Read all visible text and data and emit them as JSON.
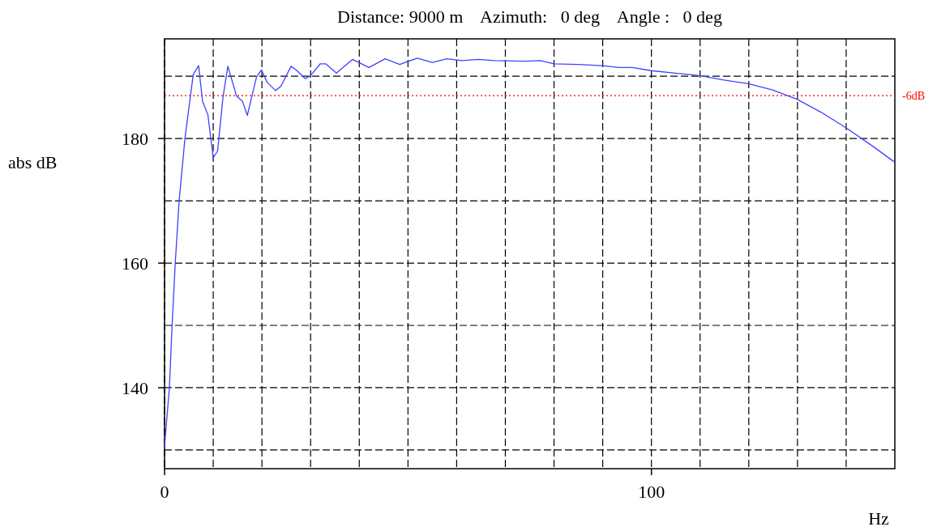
{
  "chart_data": {
    "type": "line",
    "title": "Distance: 9000 m    Azimuth:   0 deg    Angle :   0 deg",
    "xlabel": "Hz",
    "ylabel": "abs dB",
    "xlim": [
      0,
      150
    ],
    "ylim": [
      127,
      196
    ],
    "xticks": [
      0,
      {
        "value": 10,
        "label": null
      },
      {
        "value": 20,
        "label": null
      },
      {
        "value": 30,
        "label": null
      },
      {
        "value": 40,
        "label": null
      },
      {
        "value": 50,
        "label": null
      },
      {
        "value": 60,
        "label": null
      },
      {
        "value": 70,
        "label": null
      },
      {
        "value": 80,
        "label": null
      },
      {
        "value": 90,
        "label": null
      },
      100,
      {
        "value": 110,
        "label": null
      },
      {
        "value": 120,
        "label": null
      },
      {
        "value": 130,
        "label": null
      },
      {
        "value": 140,
        "label": null
      }
    ],
    "yticks": [
      {
        "value": 130,
        "label": null
      },
      140,
      {
        "value": 150,
        "label": null
      },
      160,
      {
        "value": 170,
        "label": null
      },
      180,
      {
        "value": 190,
        "label": null
      }
    ],
    "grid": true,
    "line_style": "solid",
    "ref_lines": [
      {
        "axis": "y",
        "value": 186.9,
        "label": "-6dB",
        "color": "#ff0000",
        "line_style": "dotted"
      }
    ],
    "series": [
      {
        "color": "#4040ff",
        "x": [
          0,
          1,
          1.55,
          2.2,
          3,
          4.2,
          5.9,
          7,
          7.8,
          8.9,
          10,
          10.9,
          12,
          13,
          14.8,
          16,
          17,
          18.9,
          19.9,
          21.1,
          22.8,
          23.9,
          26,
          27.2,
          28.9,
          30,
          32,
          33.1,
          35.3,
          38.6,
          42,
          45.3,
          48.3,
          51.9,
          55,
          58,
          61.1,
          64.4,
          67.8,
          73.9,
          77.2,
          80,
          85,
          89.9,
          93.3,
          96.1,
          99.9,
          104.9,
          109.9,
          114.9,
          119.9,
          124.9,
          129.9,
          134.9,
          140.2,
          145.4,
          149.8
        ],
        "values": [
          130.6,
          140,
          150,
          160,
          170,
          180.1,
          190.3,
          191.7,
          186,
          183.8,
          176.9,
          178,
          186.6,
          191.6,
          186.8,
          186,
          183.7,
          189.9,
          191,
          189,
          187.7,
          188.4,
          191.6,
          190.9,
          189.6,
          190.1,
          192,
          192,
          190.5,
          192.7,
          191.4,
          192.8,
          191.9,
          192.9,
          192.2,
          192.8,
          192.5,
          192.7,
          192.5,
          192.4,
          192.5,
          192,
          191.9,
          191.7,
          191.4,
          191.4,
          190.9,
          190.5,
          190.1,
          189.4,
          188.8,
          187.8,
          186.3,
          184.2,
          181.6,
          178.8,
          176.3
        ]
      }
    ]
  }
}
